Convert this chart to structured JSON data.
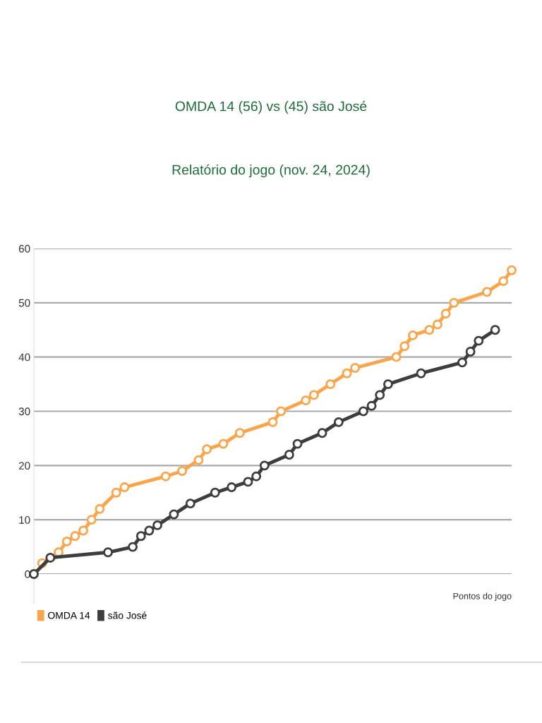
{
  "chart_data": {
    "type": "line",
    "title": "OMDA 14 (56) vs (45) são José",
    "subtitle": "Relatório do jogo (nov. 24, 2024)",
    "xlabel": "Pontos do jogo",
    "categories": [
      null,
      null,
      null,
      null,
      null,
      null,
      null,
      null,
      null,
      null,
      null,
      null,
      null,
      null,
      null,
      null,
      null,
      null,
      null,
      null,
      null,
      null,
      null,
      null,
      null,
      null,
      null,
      null,
      null,
      null,
      null,
      null,
      null,
      null,
      null,
      null,
      null,
      null,
      null,
      null,
      null,
      null,
      null,
      null,
      null,
      null,
      null,
      null,
      null,
      null,
      null,
      null,
      null,
      null,
      null,
      null,
      null,
      null,
      null
    ],
    "series": [
      {
        "name": "OMDA 14",
        "color": "#f9a54b",
        "values": [
          null,
          2,
          null,
          4,
          6,
          7,
          8,
          10,
          12,
          null,
          15,
          16,
          null,
          null,
          null,
          null,
          18,
          null,
          19,
          null,
          21,
          23,
          null,
          24,
          null,
          26,
          null,
          null,
          null,
          28,
          30,
          null,
          null,
          32,
          33,
          null,
          35,
          null,
          37,
          38,
          null,
          null,
          null,
          null,
          40,
          42,
          44,
          null,
          45,
          46,
          48,
          50,
          null,
          null,
          null,
          52,
          null,
          54,
          56
        ]
      },
      {
        "name": "são José",
        "color": "#3d3d3d",
        "values": [
          0,
          null,
          3,
          null,
          null,
          null,
          null,
          null,
          null,
          4,
          null,
          null,
          5,
          7,
          8,
          9,
          null,
          11,
          null,
          13,
          null,
          null,
          15,
          null,
          16,
          null,
          17,
          18,
          20,
          null,
          null,
          22,
          24,
          null,
          null,
          26,
          null,
          28,
          null,
          null,
          30,
          31,
          33,
          35,
          null,
          null,
          null,
          37,
          null,
          null,
          null,
          null,
          39,
          41,
          43,
          null,
          45,
          null,
          null
        ]
      }
    ],
    "ylim": [
      0,
      60
    ],
    "yticks": [
      0,
      10,
      20,
      30,
      40,
      50,
      60
    ],
    "grid": "y",
    "legend": "bottom left",
    "marker": "circle",
    "line_style": "solid"
  }
}
